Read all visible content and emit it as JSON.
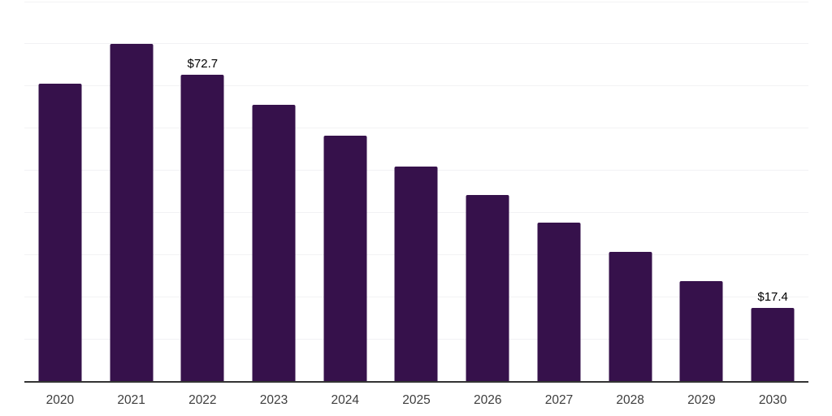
{
  "chart_data": {
    "type": "bar",
    "title": "",
    "xlabel": "",
    "ylabel": "",
    "categories": [
      "2020",
      "2021",
      "2022",
      "2023",
      "2024",
      "2025",
      "2026",
      "2027",
      "2028",
      "2029",
      "2030"
    ],
    "values": [
      70.5,
      80.0,
      72.7,
      65.6,
      58.2,
      51.0,
      44.2,
      37.6,
      30.8,
      23.8,
      17.4
    ],
    "data_labels": {
      "2": "$72.7",
      "10": "$17.4"
    },
    "ylim": [
      0,
      90
    ],
    "gridline_step": 10,
    "grid_visible": true,
    "legend_position": "none",
    "colors": {
      "bar": "#36114B",
      "gridline": "#f2f2f4",
      "axis_line": "#333333",
      "tick_label": "#3d3d3d",
      "data_label": "#000000",
      "background": "#ffffff"
    }
  }
}
